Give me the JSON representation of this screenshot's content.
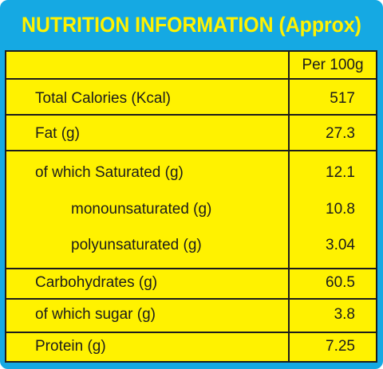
{
  "title": "NUTRITION INFORMATION (Approx)",
  "header": {
    "per": "Per 100g"
  },
  "rows": [
    {
      "label": "Total Calories (Kcal)",
      "value": "517"
    },
    {
      "label": "Fat (g)",
      "value": "27.3"
    },
    {
      "label": "of which Saturated (g)",
      "value": "12.1"
    },
    {
      "label": "monounsaturated (g)",
      "value": "10.8"
    },
    {
      "label": "polyunsaturated (g)",
      "value": "3.04"
    },
    {
      "label": "Carbohydrates (g)",
      "value": "60.5"
    },
    {
      "label": "of which sugar (g)",
      "value": "3.8"
    },
    {
      "label": "Protein (g)",
      "value": "7.25"
    }
  ],
  "colors": {
    "frame": "#15a9e3",
    "fill": "#fff200",
    "title_text": "#fff200",
    "rule": "#1c1c1c"
  }
}
